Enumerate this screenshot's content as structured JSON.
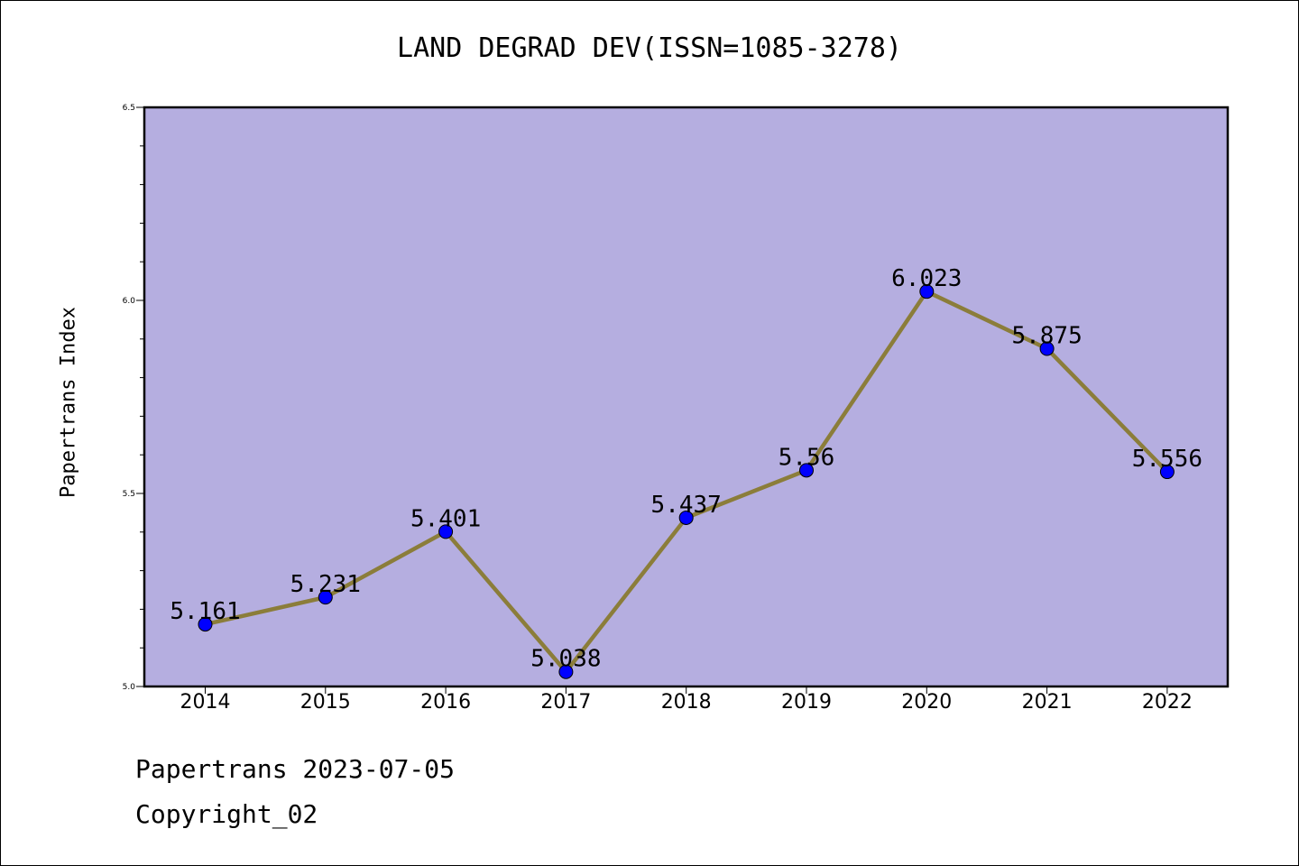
{
  "chart_data": {
    "type": "line",
    "title": "LAND DEGRAD DEV(ISSN=1085-3278)",
    "ylabel": "Papertrans Index",
    "xlabel": "",
    "categories": [
      "2014",
      "2015",
      "2016",
      "2017",
      "2018",
      "2019",
      "2020",
      "2021",
      "2022"
    ],
    "series": [
      {
        "values": [
          5.161,
          5.231,
          5.401,
          5.038,
          5.437,
          5.56,
          6.023,
          5.875,
          5.556
        ],
        "labels": [
          "5.161",
          "5.231",
          "5.401",
          "5.038",
          "5.437",
          "5.56",
          "6.023",
          "5.875",
          "5.556"
        ]
      }
    ],
    "ylim": [
      5.0,
      6.5
    ],
    "yticks": [
      "5.0",
      "5.5",
      "6.0",
      "6.5"
    ],
    "grid": false,
    "colors": {
      "plot_background": "#b5aee0",
      "line": "#8b7d3a",
      "marker": "#0000ff"
    }
  },
  "footer": {
    "date_text": "Papertrans 2023-07-05",
    "copyright_text": "Copyright_02"
  }
}
